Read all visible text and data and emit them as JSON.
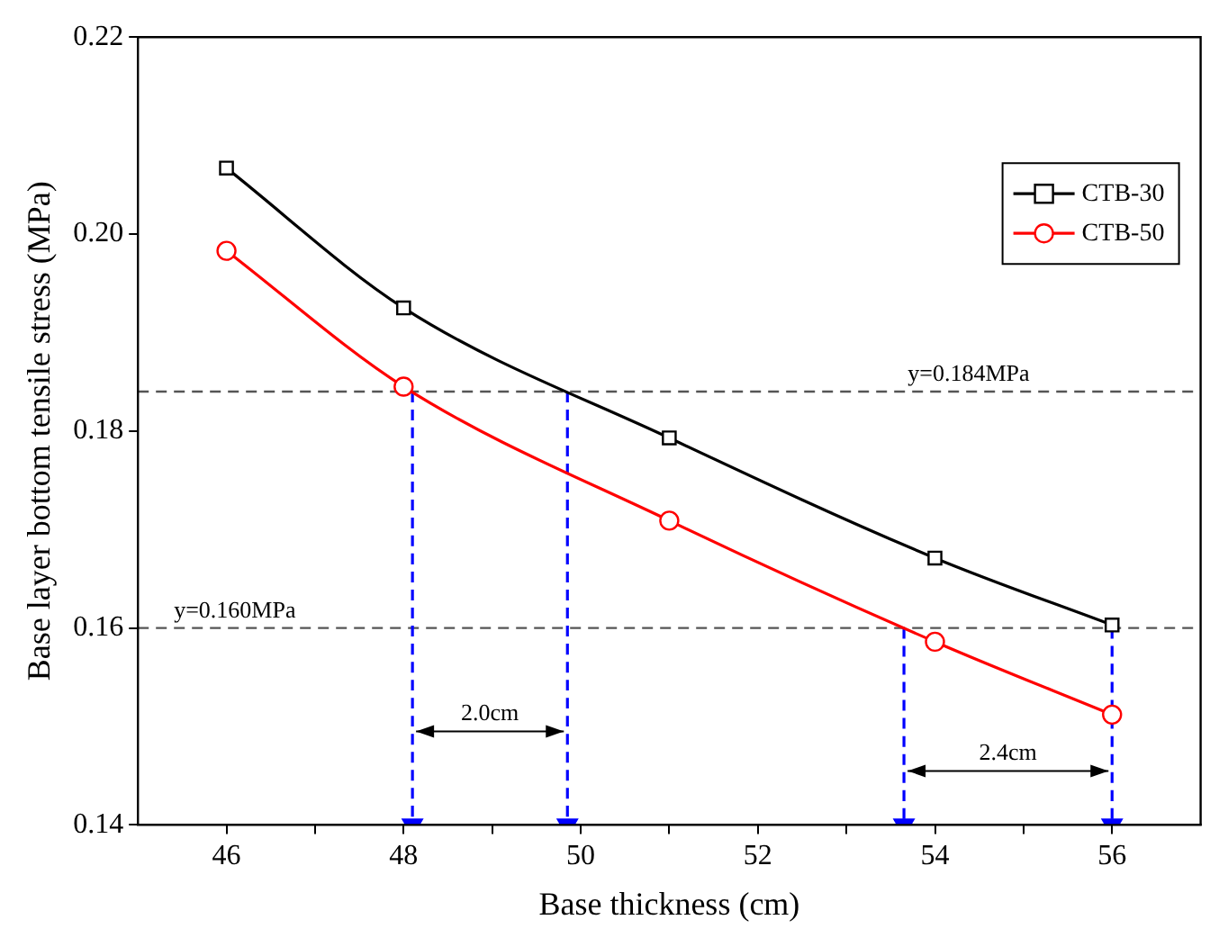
{
  "chart_data": {
    "type": "line",
    "xlabel": "Base thickness (cm)",
    "ylabel": "Base layer bottom tensile stress (MPa)",
    "x": [
      46,
      48,
      51,
      54,
      56
    ],
    "series": [
      {
        "name": "CTB-30",
        "color": "#000000",
        "marker": "square",
        "values": [
          0.2067,
          0.1925,
          0.1793,
          0.1671,
          0.1603
        ]
      },
      {
        "name": "CTB-50",
        "color": "#ff0000",
        "marker": "circle",
        "values": [
          0.1983,
          0.1845,
          0.1709,
          0.1586,
          0.1512
        ]
      },
      {
        "color": "#0000ff",
        "line_style": "dashed",
        "x": [
          48.1,
          48.1
        ],
        "values": [
          0.184,
          0.14
        ]
      },
      {
        "color": "#0000ff",
        "line_style": "dashed",
        "x": [
          49.85,
          49.85
        ],
        "values": [
          0.184,
          0.14
        ]
      },
      {
        "color": "#0000ff",
        "line_style": "dashed",
        "x": [
          53.65,
          53.65
        ],
        "values": [
          0.16,
          0.14
        ]
      },
      {
        "color": "#0000ff",
        "line_style": "dashed",
        "x": [
          56,
          56
        ],
        "values": [
          0.16,
          0.14
        ]
      }
    ],
    "xlim": [
      45,
      57
    ],
    "xticks": [
      46,
      {
        "value": 47,
        "label": null
      },
      48,
      {
        "value": 49,
        "label": null
      },
      50,
      {
        "value": 51,
        "label": null
      },
      52,
      {
        "value": 53,
        "label": null
      },
      54,
      {
        "value": 55,
        "label": null
      },
      56
    ],
    "ylim": [
      0.14,
      0.22
    ],
    "yticks": [
      0.14,
      0.16,
      0.18,
      {
        "value": 0.2,
        "label": "0.20"
      },
      0.22
    ],
    "ref_lines": [
      {
        "axis": "y",
        "value": 0.184,
        "color": "#555555",
        "line_style": "dashed",
        "label": "y=0.184MPa"
      },
      {
        "axis": "y",
        "value": 0.16,
        "color": "#555555",
        "line_style": "dashed",
        "label": "y=0.160MPa"
      }
    ],
    "annotations": [
      "2.0cm",
      "2.4cm"
    ],
    "legend": "top right",
    "grid": false
  }
}
